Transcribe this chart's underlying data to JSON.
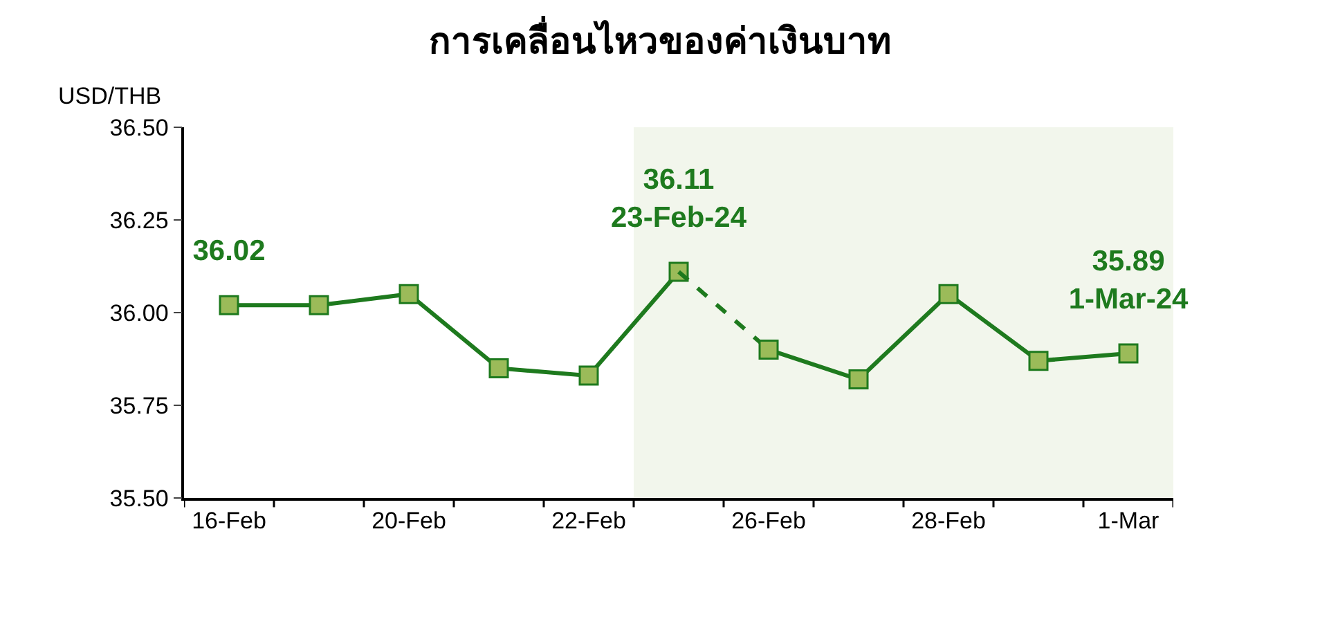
{
  "chart_data": {
    "type": "line",
    "title": "การเคลื่อนไหวของค่าเงินบาท",
    "ylabel": "USD/THB",
    "categories": [
      "16-Feb",
      null,
      "20-Feb",
      null,
      "22-Feb",
      null,
      "26-Feb",
      null,
      "28-Feb",
      null,
      "1-Mar"
    ],
    "series": [
      {
        "color": "#1e7a1e",
        "line_style": "solid",
        "marker": "square",
        "values": [
          36.02,
          36.02,
          36.05,
          35.85,
          35.83,
          36.11,
          null,
          null,
          null,
          null,
          null
        ],
        "value_labels": [
          "36.02",
          null,
          null,
          null,
          null,
          "36.11\n23-Feb-24",
          null,
          null,
          null,
          null,
          null
        ]
      },
      {
        "color": "#1e7a1e",
        "line_style": "dashed",
        "marker": "none",
        "values": [
          null,
          null,
          null,
          null,
          null,
          36.11,
          35.9,
          null,
          null,
          null,
          null
        ]
      },
      {
        "color": "#1e7a1e",
        "line_style": "solid",
        "marker": "square",
        "values": [
          null,
          null,
          null,
          null,
          null,
          null,
          35.9,
          35.82,
          36.05,
          35.87,
          35.89
        ],
        "value_labels": [
          null,
          null,
          null,
          null,
          null,
          null,
          null,
          null,
          null,
          null,
          "35.89\n1-Mar-24"
        ]
      }
    ],
    "bands": [
      {
        "axis": "x",
        "from": "22-Feb",
        "to": "1-Mar",
        "color": "#f2f6ec"
      }
    ],
    "ylim": [
      35.5,
      36.5
    ],
    "yticks": [
      {
        "value": 35.5,
        "label": "35.50"
      },
      {
        "value": 35.75,
        "label": "35.75"
      },
      {
        "value": 36.0,
        "label": "36.00"
      },
      {
        "value": 36.25,
        "label": "36.25"
      },
      {
        "value": 36.5,
        "label": "36.50"
      }
    ],
    "tick_labels": "xy"
  }
}
